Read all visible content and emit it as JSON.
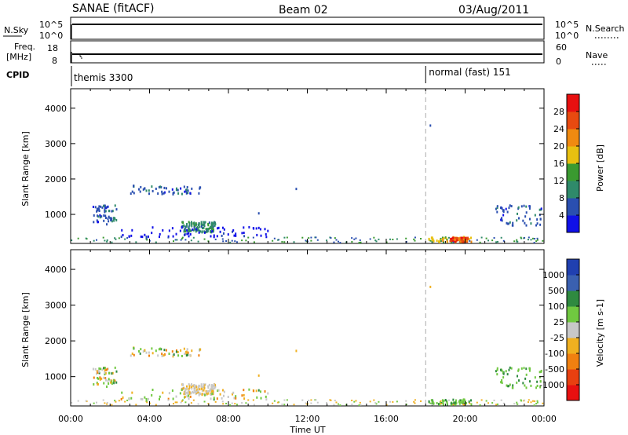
{
  "header": {
    "station": "SANAE (fitACF)",
    "beam": "Beam 02",
    "date": "03/Aug/2011"
  },
  "strip_labels": {
    "nsky": "N.Sky",
    "nsearch": "N.Search",
    "freq": "Freq.",
    "freq_unit": "[MHz]",
    "nave": "Nave",
    "cpid": "CPID",
    "noise_top": "10^5",
    "noise_bottom": "10^0",
    "freq_top": "18",
    "freq_bottom": "8",
    "nave_top": "60",
    "nave_bottom": "0"
  },
  "cpid_segments": [
    {
      "start_hour": 0,
      "label": "themis 3300"
    },
    {
      "start_hour": 18,
      "label": "normal (fast) 151"
    }
  ],
  "chart_data": [
    {
      "type": "heatmap",
      "parameter": "Power",
      "colorbar_label": "Power [dB]",
      "ylabel": "Slant Range [km]",
      "yticks": [
        1000,
        2000,
        3000,
        4000
      ],
      "ylim": [
        180,
        4550
      ],
      "xlim": [
        0,
        24
      ],
      "colorbar_ticks": [
        "4",
        "8",
        "12",
        "16",
        "20",
        "24",
        "28"
      ],
      "colorbar_colors": [
        "#1010e8",
        "#2a4fb0",
        "#2f8a6a",
        "#3a9a30",
        "#e8c010",
        "#f08a10",
        "#e84a10",
        "#e81010"
      ],
      "scatter_regions": [
        {
          "x": [
            1.0,
            2.3
          ],
          "y": [
            700,
            1250
          ],
          "level": 1
        },
        {
          "x": [
            3.0,
            6.6
          ],
          "y": [
            1550,
            1800
          ],
          "level": 1
        },
        {
          "x": [
            5.6,
            7.3
          ],
          "y": [
            480,
            780
          ],
          "level": 2
        },
        {
          "x": [
            2.5,
            10.0
          ],
          "y": [
            350,
            650
          ],
          "level": 0
        },
        {
          "x": [
            21.5,
            23.9
          ],
          "y": [
            650,
            1250
          ],
          "level": 1
        },
        {
          "x": [
            18.1,
            20.3
          ],
          "y": [
            200,
            350
          ],
          "level": 4
        }
      ]
    },
    {
      "type": "heatmap",
      "parameter": "Velocity",
      "colorbar_label": "Velocity [m s-1]",
      "ylabel": "Slant Range [km]",
      "yticks": [
        1000,
        2000,
        3000,
        4000
      ],
      "ylim": [
        180,
        4550
      ],
      "xlim": [
        0,
        24
      ],
      "xlabel": "Time UT",
      "xticks": [
        "00:00",
        "04:00",
        "08:00",
        "12:00",
        "16:00",
        "20:00",
        "00:00"
      ],
      "colorbar_ticks": [
        "1000",
        "500",
        "100",
        "25",
        "-25",
        "-100",
        "-500",
        "-1000"
      ],
      "colorbar_colors": [
        "#2040b0",
        "#3a60b0",
        "#2f8a40",
        "#70c840",
        "#c8c8c8",
        "#f0b020",
        "#f08010",
        "#e84010",
        "#e81010"
      ]
    }
  ],
  "dashed_marker_hour": 18
}
